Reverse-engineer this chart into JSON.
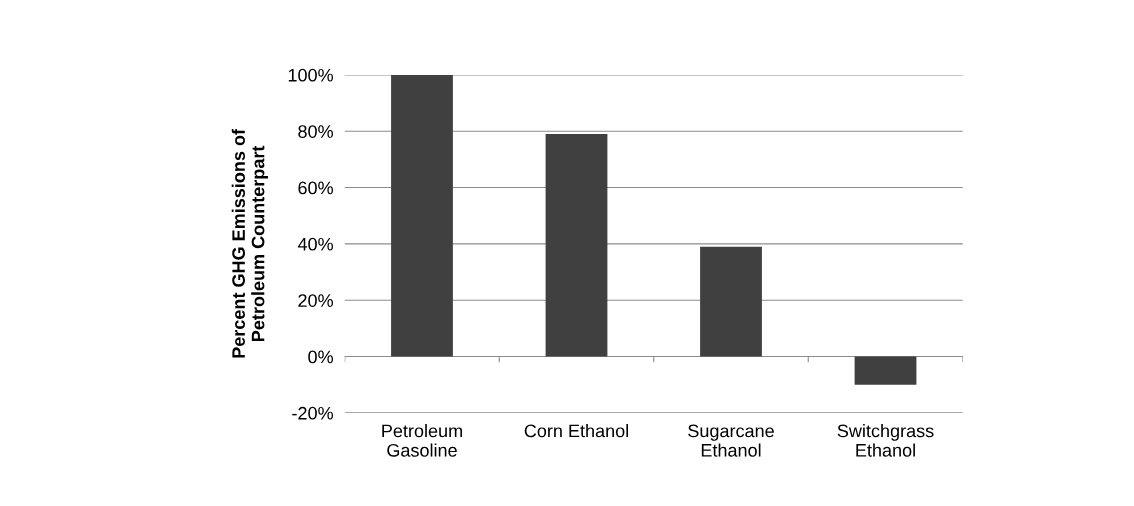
{
  "chart_data": {
    "type": "bar",
    "ylabel": "Percent GHG Emissions of\nPetroleum Counterpart",
    "categories": [
      "Petroleum\nGasoline",
      "Corn Ethanol",
      "Sugarcane\nEthanol",
      "Switchgrass\nEthanol"
    ],
    "values": [
      100,
      79,
      39,
      -10
    ],
    "color": "#404040",
    "ylim": [
      -20,
      100
    ],
    "yticks": [
      {
        "value": -20,
        "label": "-20%"
      },
      {
        "value": 0,
        "label": "0%"
      },
      {
        "value": 20,
        "label": "20%"
      },
      {
        "value": 40,
        "label": "40%"
      },
      {
        "value": 60,
        "label": "60%"
      },
      {
        "value": 80,
        "label": "80%"
      },
      {
        "value": 100,
        "label": "100%"
      }
    ],
    "grid": "y"
  }
}
